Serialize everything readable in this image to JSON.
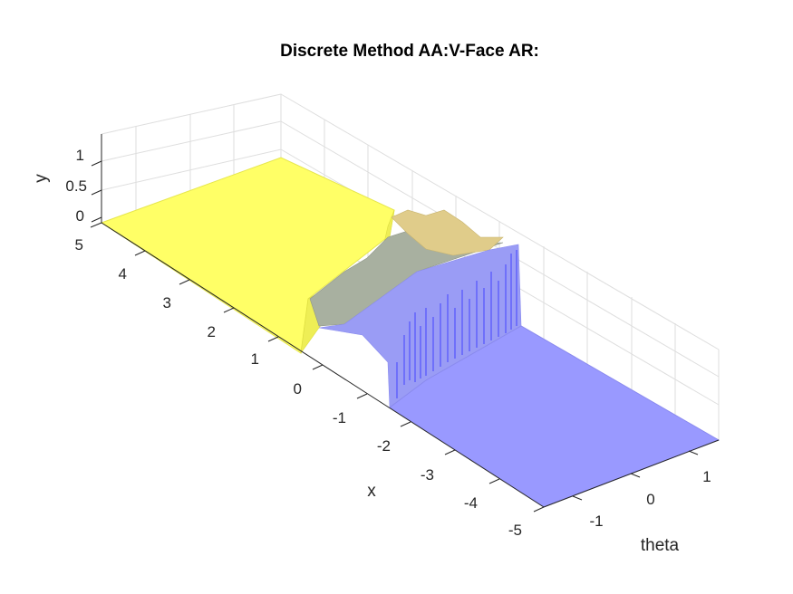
{
  "chart_data": {
    "type": "surface",
    "title": "Discrete Method AA:V-Face AR:",
    "xlabel": "x",
    "ylabel": "y",
    "zlabel": "theta",
    "x_ticks": [
      "-5",
      "-4",
      "-3",
      "-2",
      "-1",
      "0",
      "1",
      "2",
      "3",
      "4",
      "5"
    ],
    "y_ticks": [
      "0",
      "0.5",
      "1"
    ],
    "theta_ticks": [
      "-1",
      "0",
      "1"
    ],
    "xlim": [
      -5,
      5
    ],
    "ylim": [
      0,
      1.3
    ],
    "thetalim": [
      -1.6,
      1.6
    ],
    "grid": true,
    "colors": {
      "yellow_face": "#ffff66",
      "yellow_edge": "#e6e64d",
      "blue_face": "#9999ff",
      "gray_face": "#a8b0a0",
      "tan_face": "#e0cc8a",
      "vertical_lines": "#4d4dff"
    },
    "regions": [
      {
        "name": "yellow",
        "x_range": [
          0.4,
          5
        ],
        "y": 0
      },
      {
        "name": "blue",
        "x_range": [
          -5,
          -1.4
        ],
        "y": 0
      },
      {
        "name": "transition",
        "x_range": [
          -1.4,
          0.4
        ],
        "y_max": 0.75
      }
    ]
  }
}
